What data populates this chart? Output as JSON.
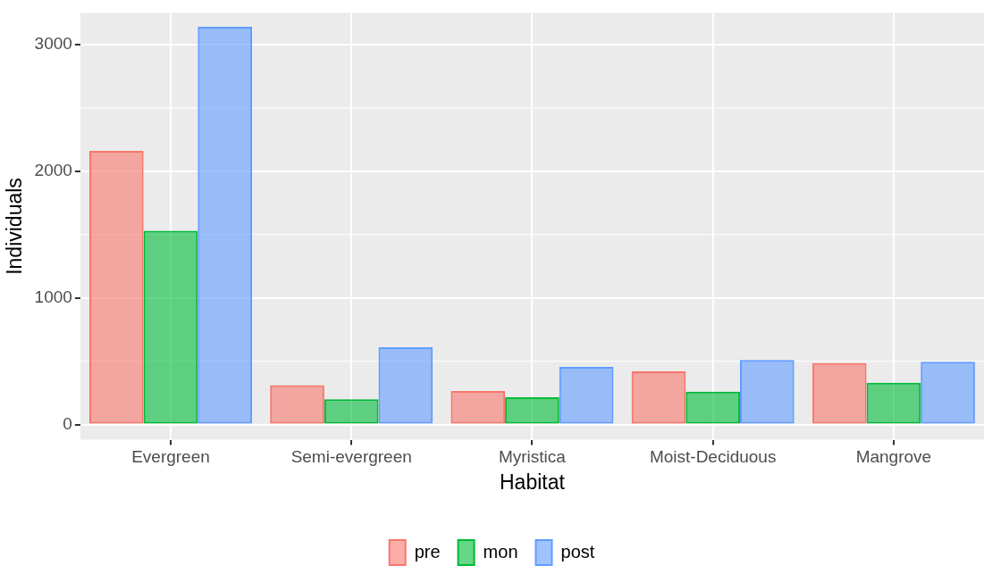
{
  "chart_data": {
    "type": "bar",
    "xlabel": "Habitat",
    "ylabel": "Individuals",
    "categories": [
      "Evergreen",
      "Semi-evergreen",
      "Myristica",
      "Moist-Deciduous",
      "Mangrove"
    ],
    "series": [
      {
        "name": "pre",
        "color": "#f8766d",
        "values": [
          2160,
          310,
          265,
          420,
          485
        ]
      },
      {
        "name": "mon",
        "color": "#00ba38",
        "values": [
          1530,
          200,
          215,
          260,
          330
        ]
      },
      {
        "name": "post",
        "color": "#619cff",
        "values": [
          3140,
          610,
          455,
          510,
          495
        ]
      }
    ],
    "ylim": [
      -120,
      3250
    ],
    "yticks": [
      0,
      1000,
      2000,
      3000
    ],
    "grid": true,
    "legend": "bottom"
  }
}
